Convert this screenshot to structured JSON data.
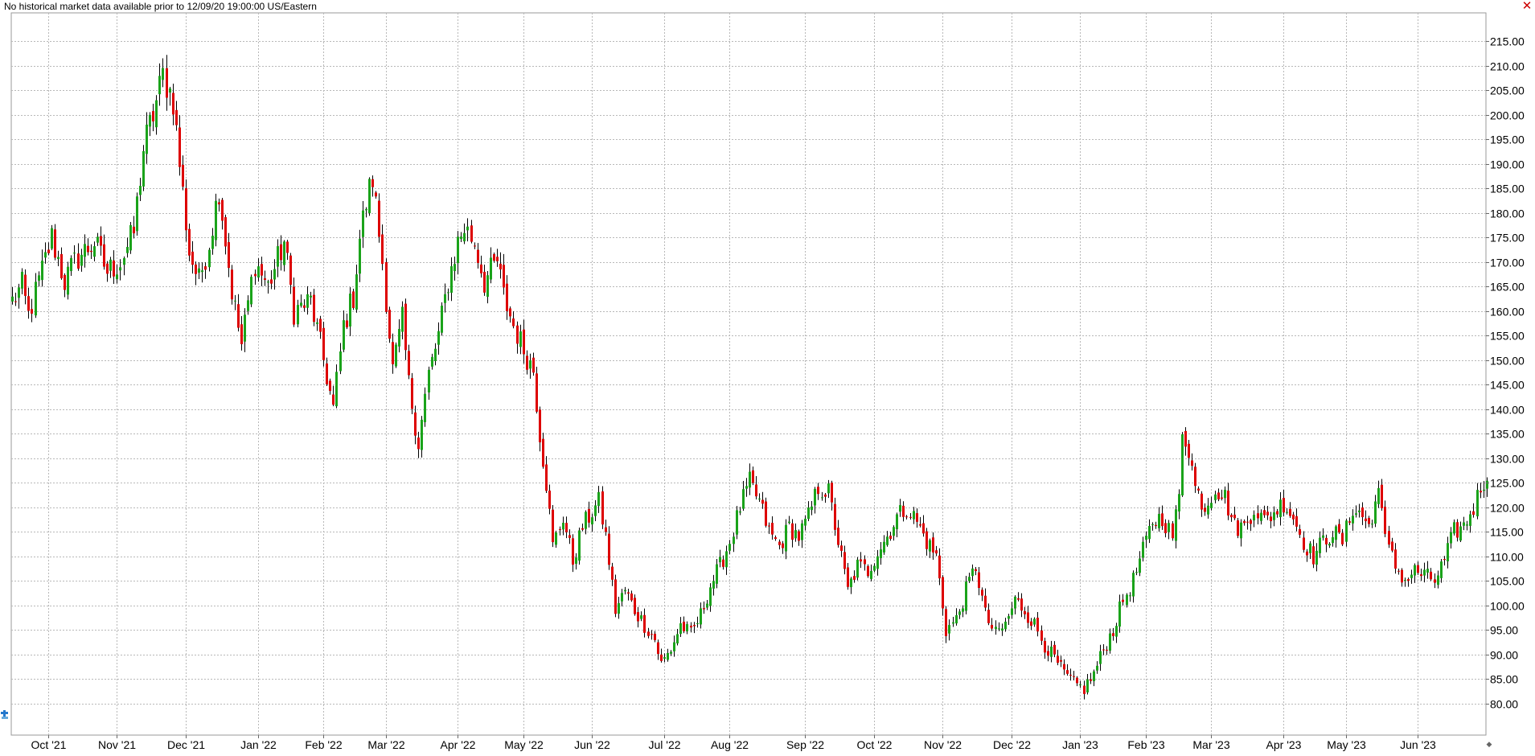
{
  "status": {
    "message": "No historical market data available prior to 12/09/20 19:00:00 US/Eastern"
  },
  "colors": {
    "up": "#1aa31a",
    "down": "#dd0000",
    "wick": "#000000",
    "grid": "#b8b8b8",
    "close": "#cc0000"
  },
  "icons": {
    "close": "close-icon",
    "chart_tool": "crosshair-tool-icon",
    "scroll": "scroll-right-icon"
  },
  "chart_data": {
    "type": "candlestick",
    "title": "",
    "xlabel": "",
    "ylabel": "",
    "ylim": [
      75,
      220
    ],
    "grid": true,
    "y_ticks": [
      "80.00",
      "85.00",
      "90.00",
      "95.00",
      "100.00",
      "105.00",
      "110.00",
      "115.00",
      "120.00",
      "125.00",
      "130.00",
      "135.00",
      "140.00",
      "145.00",
      "150.00",
      "155.00",
      "160.00",
      "165.00",
      "170.00",
      "175.00",
      "180.00",
      "185.00",
      "190.00",
      "195.00",
      "200.00",
      "205.00",
      "210.00",
      "215.00"
    ],
    "x_ticks": [
      {
        "label": "Oct '21",
        "index": 11
      },
      {
        "label": "Nov '21",
        "index": 32
      },
      {
        "label": "Dec '21",
        "index": 53
      },
      {
        "label": "Jan '22",
        "index": 75
      },
      {
        "label": "Feb '22",
        "index": 95
      },
      {
        "label": "Mar '22",
        "index": 114
      },
      {
        "label": "Apr '22",
        "index": 136
      },
      {
        "label": "May '22",
        "index": 156
      },
      {
        "label": "Jun '22",
        "index": 177
      },
      {
        "label": "Jul '22",
        "index": 199
      },
      {
        "label": "Aug '22",
        "index": 219
      },
      {
        "label": "Sep '22",
        "index": 242
      },
      {
        "label": "Oct '22",
        "index": 263
      },
      {
        "label": "Nov '22",
        "index": 284
      },
      {
        "label": "Dec '22",
        "index": 305
      },
      {
        "label": "Jan '23",
        "index": 326
      },
      {
        "label": "Feb '23",
        "index": 346
      },
      {
        "label": "Mar '23",
        "index": 366
      },
      {
        "label": "Apr '23",
        "index": 388
      },
      {
        "label": "May '23",
        "index": 407
      },
      {
        "label": "Jun '23",
        "index": 429
      }
    ],
    "bar_count": 451,
    "anchors": [
      [
        0,
        162
      ],
      [
        3,
        165
      ],
      [
        5,
        159
      ],
      [
        8,
        166
      ],
      [
        12,
        175
      ],
      [
        16,
        166
      ],
      [
        20,
        171
      ],
      [
        25,
        174
      ],
      [
        29,
        168
      ],
      [
        33,
        170
      ],
      [
        37,
        176
      ],
      [
        40,
        193
      ],
      [
        43,
        200
      ],
      [
        46,
        208
      ],
      [
        49,
        203
      ],
      [
        51,
        190
      ],
      [
        54,
        172
      ],
      [
        57,
        166
      ],
      [
        60,
        174
      ],
      [
        63,
        185
      ],
      [
        67,
        164
      ],
      [
        70,
        153
      ],
      [
        74,
        170
      ],
      [
        78,
        165
      ],
      [
        83,
        174
      ],
      [
        86,
        160
      ],
      [
        91,
        162
      ],
      [
        95,
        150
      ],
      [
        98,
        140
      ],
      [
        101,
        157
      ],
      [
        104,
        163
      ],
      [
        106,
        175
      ],
      [
        108,
        182
      ],
      [
        110,
        187
      ],
      [
        113,
        170
      ],
      [
        116,
        148
      ],
      [
        119,
        158
      ],
      [
        121,
        145
      ],
      [
        124,
        133
      ],
      [
        127,
        147
      ],
      [
        130,
        155
      ],
      [
        133,
        166
      ],
      [
        136,
        174
      ],
      [
        138,
        177
      ],
      [
        141,
        174
      ],
      [
        144,
        166
      ],
      [
        148,
        170
      ],
      [
        150,
        163
      ],
      [
        153,
        157
      ],
      [
        156,
        152
      ],
      [
        159,
        148
      ],
      [
        161,
        135
      ],
      [
        163,
        125
      ],
      [
        165,
        112
      ],
      [
        168,
        118
      ],
      [
        171,
        109
      ],
      [
        174,
        116
      ],
      [
        177,
        119
      ],
      [
        179,
        121
      ],
      [
        181,
        114
      ],
      [
        184,
        99
      ],
      [
        187,
        103
      ],
      [
        190,
        99
      ],
      [
        193,
        96
      ],
      [
        196,
        93
      ],
      [
        198,
        88
      ],
      [
        201,
        91
      ],
      [
        204,
        96
      ],
      [
        207,
        94
      ],
      [
        210,
        98
      ],
      [
        213,
        104
      ],
      [
        216,
        108
      ],
      [
        219,
        113
      ],
      [
        222,
        120
      ],
      [
        225,
        125
      ],
      [
        228,
        121
      ],
      [
        231,
        115
      ],
      [
        234,
        112
      ],
      [
        237,
        116
      ],
      [
        240,
        114
      ],
      [
        243,
        118
      ],
      [
        246,
        124
      ],
      [
        249,
        123
      ],
      [
        252,
        113
      ],
      [
        255,
        103
      ],
      [
        258,
        108
      ],
      [
        261,
        107
      ],
      [
        264,
        111
      ],
      [
        267,
        114
      ],
      [
        270,
        118
      ],
      [
        273,
        120
      ],
      [
        276,
        117
      ],
      [
        279,
        113
      ],
      [
        282,
        110
      ],
      [
        285,
        95
      ],
      [
        288,
        97
      ],
      [
        291,
        103
      ],
      [
        294,
        108
      ],
      [
        297,
        98
      ],
      [
        300,
        94
      ],
      [
        303,
        96
      ],
      [
        306,
        101
      ],
      [
        309,
        99
      ],
      [
        312,
        96
      ],
      [
        315,
        92
      ],
      [
        318,
        89
      ],
      [
        321,
        86
      ],
      [
        324,
        84
      ],
      [
        327,
        83
      ],
      [
        330,
        86
      ],
      [
        333,
        91
      ],
      [
        336,
        95
      ],
      [
        339,
        101
      ],
      [
        342,
        105
      ],
      [
        345,
        111
      ],
      [
        348,
        117
      ],
      [
        351,
        118
      ],
      [
        354,
        114
      ],
      [
        356,
        122
      ],
      [
        357,
        136
      ],
      [
        359,
        132
      ],
      [
        361,
        124
      ],
      [
        364,
        120
      ],
      [
        367,
        124
      ],
      [
        370,
        122
      ],
      [
        373,
        116
      ],
      [
        376,
        116
      ],
      [
        379,
        120
      ],
      [
        382,
        117
      ],
      [
        385,
        119
      ],
      [
        388,
        121
      ],
      [
        391,
        118
      ],
      [
        394,
        113
      ],
      [
        397,
        110
      ],
      [
        400,
        113
      ],
      [
        403,
        115
      ],
      [
        406,
        113
      ],
      [
        409,
        120
      ],
      [
        412,
        118
      ],
      [
        415,
        116
      ],
      [
        417,
        126
      ],
      [
        419,
        113
      ],
      [
        422,
        108
      ],
      [
        425,
        105
      ],
      [
        428,
        107
      ],
      [
        431,
        106
      ],
      [
        434,
        105
      ],
      [
        437,
        109
      ],
      [
        440,
        115
      ],
      [
        443,
        116
      ],
      [
        446,
        120
      ],
      [
        448,
        124
      ],
      [
        450,
        127
      ]
    ]
  }
}
